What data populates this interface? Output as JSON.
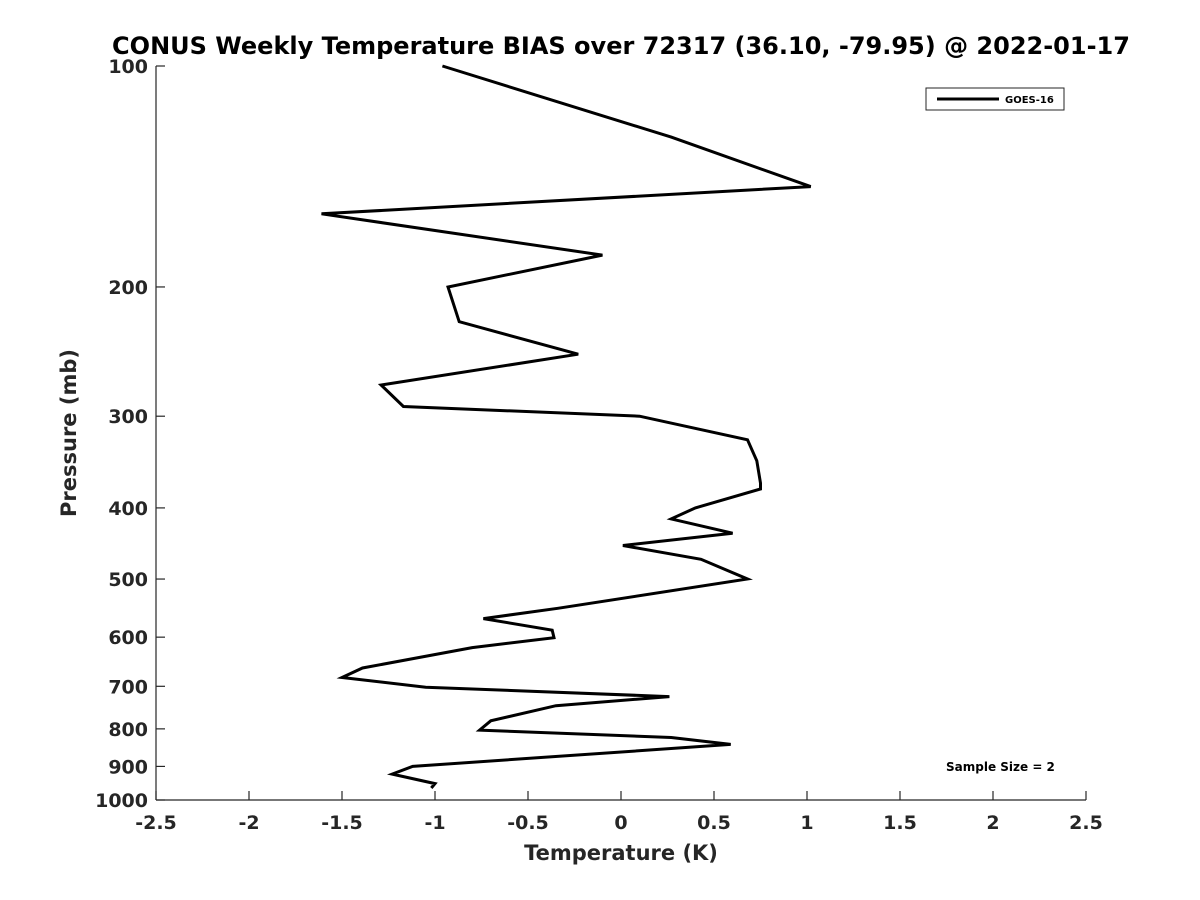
{
  "chart_data": {
    "type": "line",
    "title": "CONUS Weekly Temperature BIAS over 72317 (36.10, -79.95) @ 2022-01-17",
    "xlabel": "Temperature (K)",
    "ylabel": "Pressure (mb)",
    "xlim": [
      -2.5,
      2.5
    ],
    "ylim": [
      1000,
      100
    ],
    "y_scale": "log",
    "y_reversed": true,
    "grid": false,
    "x_ticks": [
      "-2.5",
      "-2",
      "-1.5",
      "-1",
      "-0.5",
      "0",
      "0.5",
      "1",
      "1.5",
      "2",
      "2.5"
    ],
    "y_ticks": [
      "100",
      "200",
      "300",
      "400",
      "500",
      "600",
      "700",
      "800",
      "900",
      "1000"
    ],
    "legend_position": "top-right",
    "annotation": "Sample Size = 2",
    "series": [
      {
        "name": "GOES-16",
        "color": "#000000",
        "points": [
          {
            "x": -0.96,
            "y": 100
          },
          {
            "x": 0.27,
            "y": 125
          },
          {
            "x": 1.02,
            "y": 146
          },
          {
            "x": -1.61,
            "y": 159
          },
          {
            "x": -0.1,
            "y": 181
          },
          {
            "x": -0.93,
            "y": 200
          },
          {
            "x": -0.87,
            "y": 223
          },
          {
            "x": -0.23,
            "y": 247
          },
          {
            "x": -1.29,
            "y": 272
          },
          {
            "x": -1.17,
            "y": 291
          },
          {
            "x": 0.1,
            "y": 300
          },
          {
            "x": 0.68,
            "y": 323
          },
          {
            "x": 0.73,
            "y": 345
          },
          {
            "x": 0.75,
            "y": 370
          },
          {
            "x": 0.75,
            "y": 377
          },
          {
            "x": 0.4,
            "y": 400
          },
          {
            "x": 0.27,
            "y": 414
          },
          {
            "x": 0.6,
            "y": 433
          },
          {
            "x": 0.01,
            "y": 450
          },
          {
            "x": 0.43,
            "y": 470
          },
          {
            "x": 0.68,
            "y": 500
          },
          {
            "x": -0.34,
            "y": 548
          },
          {
            "x": -0.74,
            "y": 566
          },
          {
            "x": -0.37,
            "y": 587
          },
          {
            "x": -0.36,
            "y": 601
          },
          {
            "x": -0.8,
            "y": 620
          },
          {
            "x": -1.39,
            "y": 661
          },
          {
            "x": -1.5,
            "y": 681
          },
          {
            "x": -1.05,
            "y": 702
          },
          {
            "x": 0.26,
            "y": 723
          },
          {
            "x": -0.35,
            "y": 744
          },
          {
            "x": -0.7,
            "y": 780
          },
          {
            "x": -0.76,
            "y": 803
          },
          {
            "x": 0.27,
            "y": 822
          },
          {
            "x": 0.59,
            "y": 840
          },
          {
            "x": -1.12,
            "y": 900
          },
          {
            "x": -1.23,
            "y": 922
          },
          {
            "x": -1.0,
            "y": 950
          },
          {
            "x": -1.02,
            "y": 963
          }
        ]
      }
    ]
  }
}
